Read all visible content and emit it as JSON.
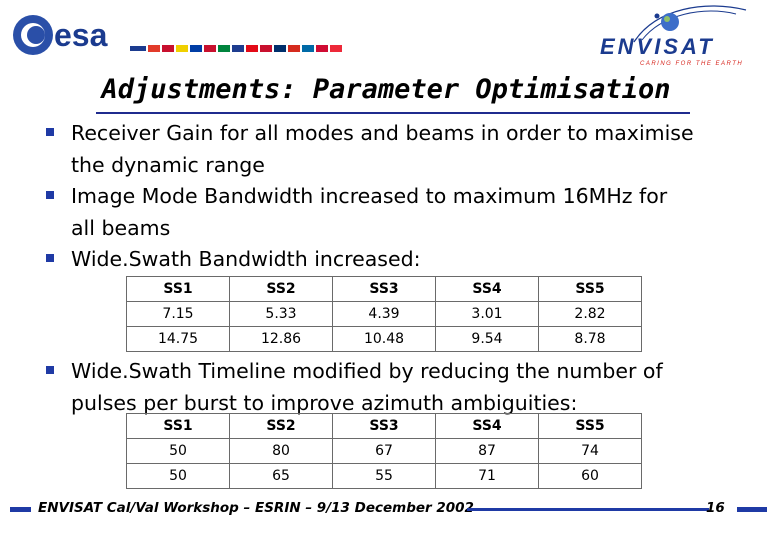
{
  "header": {
    "esa_logo_text": "esa",
    "envisat_logo_text": "ENVISAT",
    "envisat_tagline": "CARING FOR THE EARTH"
  },
  "title": "Adjustments: Parameter Optimisation",
  "bullets": [
    {
      "lines": [
        "Receiver Gain for all modes and beams in order to maximise",
        "the dynamic range"
      ]
    },
    {
      "lines": [
        "Image Mode Bandwidth increased to maximum 16MHz for",
        "all beams"
      ]
    },
    {
      "lines": [
        "Wide.Swath Bandwidth increased:"
      ]
    },
    {
      "lines": [
        "Wide.Swath Timeline modified by reducing the number of",
        "pulses per burst to improve azimuth ambiguities:"
      ]
    }
  ],
  "table1": {
    "header": [
      "SS1",
      "SS2",
      "SS3",
      "SS4",
      "SS5"
    ],
    "rows": [
      [
        "7.15",
        "5.33",
        "4.39",
        "3.01",
        "2.82"
      ],
      [
        "14.75",
        "12.86",
        "10.48",
        "9.54",
        "8.78"
      ]
    ]
  },
  "table2": {
    "header": [
      "SS1",
      "SS2",
      "SS3",
      "SS4",
      "SS5"
    ],
    "rows": [
      [
        "50",
        "80",
        "67",
        "87",
        "74"
      ],
      [
        "50",
        "65",
        "55",
        "71",
        "60"
      ]
    ]
  },
  "footer": {
    "text": "ENVISAT Cal/Val Workshop – ESRIN – 9/13 December 2002",
    "page_number": "16"
  },
  "colors": {
    "accent": "#1f3aa5",
    "esa_blue": "#1b3b8f"
  }
}
